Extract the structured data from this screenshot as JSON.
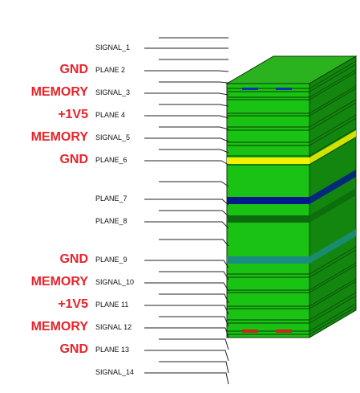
{
  "layers": [
    {
      "key": "s1",
      "label": "SIGNAL_1",
      "net": ""
    },
    {
      "key": "p2",
      "label": "PLANE  2",
      "net": "GND"
    },
    {
      "key": "s3",
      "label": "SIGNAL_3",
      "net": "MEMORY"
    },
    {
      "key": "p4",
      "label": "PLANE  4",
      "net": "+1V5"
    },
    {
      "key": "s5",
      "label": "SIGNAL_5",
      "net": "MEMORY"
    },
    {
      "key": "p6",
      "label": "PLANE_6",
      "net": "GND"
    },
    {
      "key": "p7",
      "label": "PLANE_7",
      "net": ""
    },
    {
      "key": "p8",
      "label": "PLANE_8",
      "net": ""
    },
    {
      "key": "p9",
      "label": "PLANE_9",
      "net": "GND"
    },
    {
      "key": "s10",
      "label": "SIGNAL_10",
      "net": "MEMORY"
    },
    {
      "key": "p11",
      "label": "PLANE  11",
      "net": "+1V5"
    },
    {
      "key": "s12",
      "label": "SIGNAL  12",
      "net": "MEMORY"
    },
    {
      "key": "p13",
      "label": "PLANE  13",
      "net": "GND"
    },
    {
      "key": "s14",
      "label": "SIGNAL_14",
      "net": ""
    }
  ],
  "colors": {
    "net_label": "#e8232a",
    "board_front": "#19c213",
    "board_top": "#2bb21f",
    "board_side": "#13860f",
    "edge_dark": "#0a3a06",
    "plane_yellow": "#f4f200",
    "plane_navy": "#001a8c",
    "plane_dark_green": "#0c6b0c",
    "plane_teal": "#1b8c80",
    "pad_blue": "#1030b0",
    "pad_red": "#d02020"
  }
}
